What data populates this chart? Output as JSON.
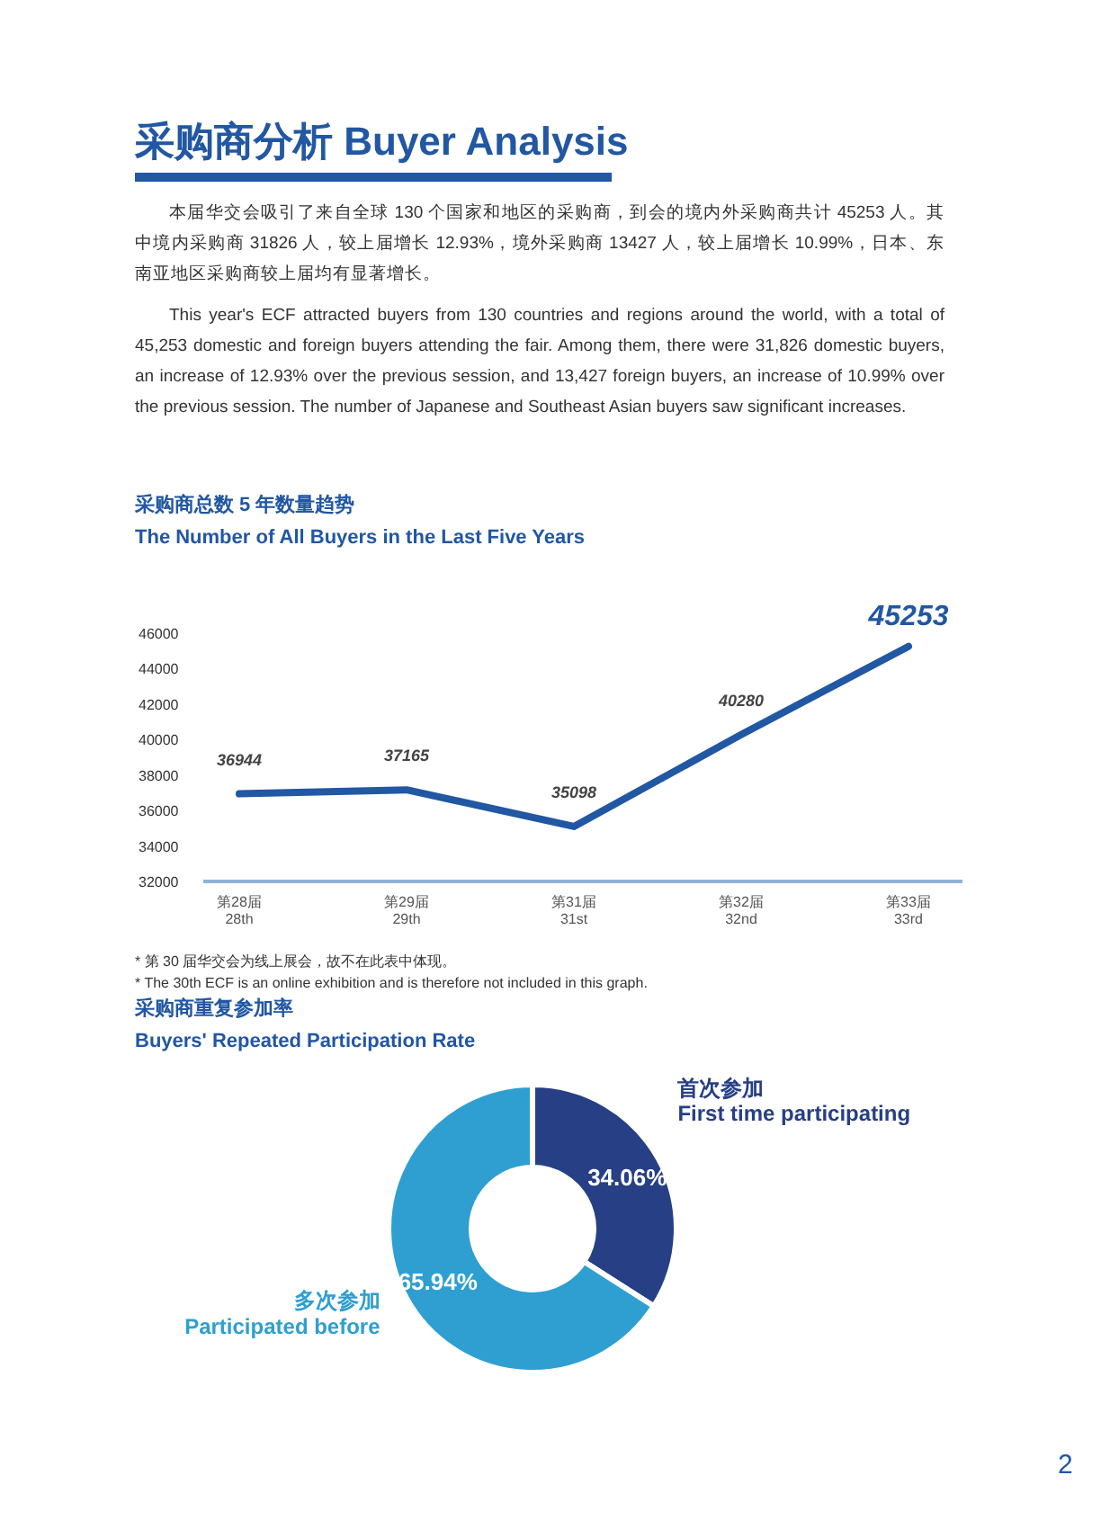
{
  "chart_data": [
    {
      "type": "other",
      "title": "采购商分析 Buyer Analysis",
      "annotations": [
        "本届华交会吸引了来自全球 130 个国家和地区的采购商，到会的境内外采购商共计 45253 人。其中境内采购商 31826 人，较上届增长 12.93%，境外采购商 13427 人，较上届增长 10.99%，日本、东南亚地区采购商较上届均有显著增长。",
        "This year's ECF attracted buyers from 130 countries and regions around the world, with a total of 45,253 domestic and foreign buyers attending the fair. Among them, there were 31,826 domestic buyers, an increase of 12.93% over the previous session, and 13,427 foreign buyers, an increase of 10.99% over the previous session. The number of Japanese and Southeast Asian buyers saw significant increases."
      ]
    },
    {
      "type": "line",
      "title": "采购商总数 5 年数量趋势",
      "subtitle": "The Number of All Buyers in the Last Five Years",
      "categories": [
        "第28届\n28th",
        "第29届\n29th",
        "第31届\n31st",
        "第32届\n32nd",
        "第33届\n33rd"
      ],
      "series": [
        {
          "color": "#2157a3",
          "values": [
            36944,
            37165,
            35098,
            40280,
            45253
          ]
        }
      ],
      "ylim": [
        32000,
        46000
      ],
      "yticks": [
        32000,
        34000,
        36000,
        38000,
        40000,
        42000,
        44000,
        46000
      ],
      "data_labels": true,
      "marker": "none",
      "line_style": "solid",
      "grid": false,
      "annotations": [
        "* 第 30 届华交会为线上展会，故不在此表中体现。",
        "* The 30th ECF is an online exhibition and is therefore not included in this graph."
      ]
    },
    {
      "type": "donut",
      "title": "采购商重复参加率",
      "subtitle": "Buyers' Repeated Participation Rate",
      "categories": [
        "首次参加\nFirst time participating",
        "多次参加\nParticipated before"
      ],
      "values": [
        34.06,
        65.94
      ],
      "colors": [
        "#263f85",
        "#2e9fd0"
      ],
      "value_labels": [
        "34.06%",
        "65.94%"
      ],
      "annotations": [
        "2"
      ]
    }
  ]
}
